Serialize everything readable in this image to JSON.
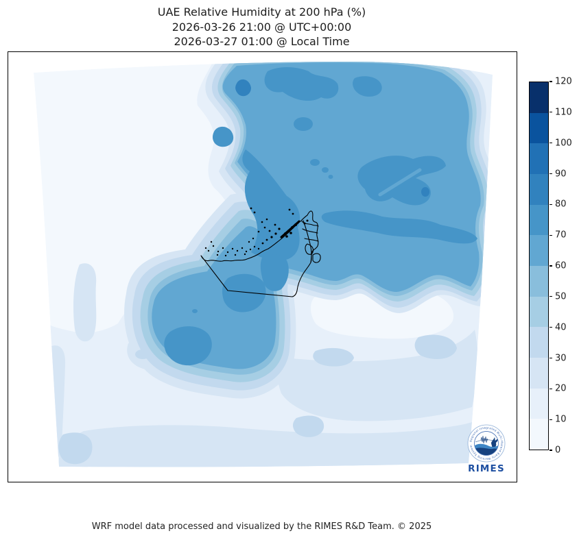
{
  "title": {
    "line1": "UAE Relative Humidity at 200 hPa (%)",
    "line2": "2026-03-26 21:00 @ UTC+00:00",
    "line3": "2026-03-27 01:00 @ Local Time"
  },
  "footer": {
    "credit": "WRF model data processed and visualized by the RIMES R&D Team. © 2025"
  },
  "logo": {
    "label": "RIMES",
    "ring_text": "Regional Integrated Multi-Hazard Early Warning System",
    "primary_color": "#1d4fa1"
  },
  "colorbar": {
    "min": 0,
    "max": 120,
    "tick_step": 10,
    "ticks": [
      0,
      10,
      20,
      30,
      40,
      50,
      60,
      70,
      80,
      90,
      100,
      110,
      120
    ],
    "level_colors": [
      "#f3f8fd",
      "#e7f0fa",
      "#d6e5f4",
      "#c2d9ee",
      "#a6cee4",
      "#89bedc",
      "#61a7d2",
      "#4695c8",
      "#3182be",
      "#2171b5",
      "#0a539e",
      "#08306b"
    ]
  },
  "chart_data": {
    "type": "heatmap",
    "subtype": "filled-contour-map",
    "title": "UAE Relative Humidity at 200 hPa (%)",
    "variable": "Relative Humidity",
    "pressure_level": "200 hPa",
    "units": "%",
    "valid_time_utc": "2026-03-26 21:00 @ UTC+00:00",
    "valid_time_local": "2026-03-27 01:00 @ Local Time",
    "model": "WRF",
    "colormap": "Blues (discrete, 12 levels)",
    "contour_levels": [
      0,
      10,
      20,
      30,
      40,
      50,
      60,
      70,
      80,
      90,
      100,
      110,
      120
    ],
    "colorbar_range": [
      0,
      120
    ],
    "legend_position": "right",
    "grid": false,
    "overlay": "UAE administrative boundary outline (black)",
    "regions": [
      {
        "area": "northeast sector (Gulf of Oman / Iran side)",
        "rh_percent": "60-80"
      },
      {
        "area": "small maxima inside northeast moist region",
        "rh_percent": "80-90"
      },
      {
        "area": "northern UAE coast, Dubai and Musandam peninsula",
        "rh_percent": "50-70"
      },
      {
        "area": "blobs southwest of UAE border (Rub al Khali)",
        "rh_percent": "60-80"
      },
      {
        "area": "west / northwest (Arabian Gulf and Saudi side)",
        "rh_percent": "0-20"
      },
      {
        "area": "southeast Oman sector pocket",
        "rh_percent": "0-20"
      },
      {
        "area": "southern band along domain bottom",
        "rh_percent": "20-40"
      }
    ]
  }
}
